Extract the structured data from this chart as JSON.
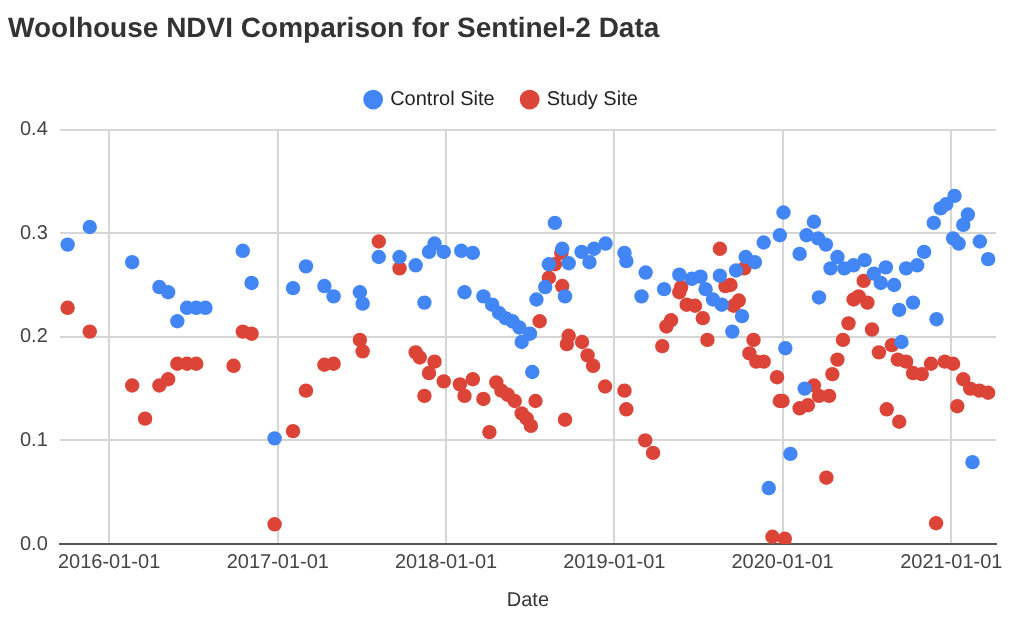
{
  "chart_data": {
    "type": "scatter",
    "title": "Woolhouse NDVI Comparison for Sentinel-2 Data",
    "xlabel": "Date",
    "xlim": [
      "2015-09-16",
      "2021-04-08"
    ],
    "xticks": [
      "2016-01-01",
      "2017-01-01",
      "2018-01-01",
      "2019-01-01",
      "2020-01-01",
      "2021-01-01"
    ],
    "ylim": [
      0,
      0.4
    ],
    "yticks": [
      {
        "value": 0,
        "label": "0.0"
      },
      0.1,
      0.2,
      0.3,
      0.4
    ],
    "grid": true,
    "legend": "top",
    "marker": "circle",
    "series": [
      {
        "name": "Control Site",
        "color": "#4285f4",
        "x": [
          "2015-10-03",
          "2015-11-20",
          "2016-02-20",
          "2016-04-19",
          "2016-05-08",
          "2016-05-28",
          "2016-06-18",
          "2016-07-08",
          "2016-07-28",
          "2016-10-17",
          "2016-11-05",
          "2016-12-25",
          "2017-02-03",
          "2017-03-03",
          "2017-04-12",
          "2017-05-02",
          "2017-06-28",
          "2017-07-04",
          "2017-08-08",
          "2017-09-22",
          "2017-10-27",
          "2017-11-15",
          "2017-11-25",
          "2017-12-07",
          "2017-12-27",
          "2018-02-03",
          "2018-02-10",
          "2018-02-28",
          "2018-03-23",
          "2018-04-11",
          "2018-04-26",
          "2018-05-10",
          "2018-05-25",
          "2018-06-09",
          "2018-06-14",
          "2018-07-02",
          "2018-07-07",
          "2018-07-16",
          "2018-08-04",
          "2018-08-12",
          "2018-08-25",
          "2018-09-10",
          "2018-09-16",
          "2018-09-24",
          "2018-10-22",
          "2018-11-08",
          "2018-11-18",
          "2018-12-13",
          "2019-01-23",
          "2019-01-27",
          "2019-03-01",
          "2019-03-10",
          "2019-04-19",
          "2019-05-22",
          "2019-06-18",
          "2019-07-07",
          "2019-07-18",
          "2019-08-03",
          "2019-08-18",
          "2019-08-22",
          "2019-09-14",
          "2019-09-22",
          "2019-10-05",
          "2019-10-13",
          "2019-11-02",
          "2019-11-21",
          "2019-12-02",
          "2019-12-26",
          "2020-01-03",
          "2020-01-07",
          "2020-01-18",
          "2020-02-07",
          "2020-02-18",
          "2020-02-22",
          "2020-03-09",
          "2020-03-18",
          "2020-03-20",
          "2020-04-04",
          "2020-04-14",
          "2020-04-29",
          "2020-05-14",
          "2020-06-03",
          "2020-06-27",
          "2020-07-17",
          "2020-08-01",
          "2020-08-12",
          "2020-08-30",
          "2020-09-10",
          "2020-09-15",
          "2020-09-25",
          "2020-10-10",
          "2020-10-19",
          "2020-11-03",
          "2020-11-24",
          "2020-11-30",
          "2020-12-09",
          "2020-12-21",
          "2021-01-05",
          "2021-01-08",
          "2021-01-17",
          "2021-01-27",
          "2021-02-06",
          "2021-02-16",
          "2021-03-04",
          "2021-03-22"
        ],
        "values": [
          0.289,
          0.306,
          0.272,
          0.248,
          0.243,
          0.215,
          0.228,
          0.228,
          0.228,
          0.283,
          0.252,
          0.102,
          0.247,
          0.268,
          0.249,
          0.239,
          0.243,
          0.232,
          0.277,
          0.277,
          0.269,
          0.233,
          0.282,
          0.29,
          0.282,
          0.283,
          0.243,
          0.281,
          0.239,
          0.231,
          0.223,
          0.218,
          0.215,
          0.209,
          0.195,
          0.203,
          0.166,
          0.236,
          0.248,
          0.27,
          0.31,
          0.285,
          0.239,
          0.271,
          0.282,
          0.272,
          0.285,
          0.29,
          0.281,
          0.273,
          0.239,
          0.262,
          0.246,
          0.26,
          0.256,
          0.258,
          0.246,
          0.236,
          0.259,
          0.231,
          0.205,
          0.264,
          0.22,
          0.277,
          0.272,
          0.291,
          0.054,
          0.298,
          0.32,
          0.189,
          0.087,
          0.28,
          0.15,
          0.298,
          0.311,
          0.295,
          0.238,
          0.289,
          0.266,
          0.277,
          0.266,
          0.269,
          0.274,
          0.261,
          0.252,
          0.267,
          0.25,
          0.226,
          0.195,
          0.266,
          0.233,
          0.269,
          0.282,
          0.31,
          0.217,
          0.324,
          0.328,
          0.295,
          0.336,
          0.29,
          0.308,
          0.318,
          0.079,
          0.292,
          0.275
        ]
      },
      {
        "name": "Study Site",
        "color": "#db4437",
        "x": [
          "2015-10-03",
          "2015-11-20",
          "2016-02-20",
          "2016-03-19",
          "2016-04-19",
          "2016-05-08",
          "2016-05-28",
          "2016-06-18",
          "2016-07-08",
          "2016-09-27",
          "2016-10-17",
          "2016-11-05",
          "2016-12-25",
          "2017-02-03",
          "2017-03-03",
          "2017-04-12",
          "2017-05-02",
          "2017-06-28",
          "2017-07-04",
          "2017-08-08",
          "2017-09-22",
          "2017-10-27",
          "2017-11-05",
          "2017-11-15",
          "2017-11-25",
          "2017-12-07",
          "2017-12-27",
          "2018-01-31",
          "2018-02-10",
          "2018-02-28",
          "2018-03-23",
          "2018-04-05",
          "2018-04-20",
          "2018-05-01",
          "2018-05-15",
          "2018-05-30",
          "2018-06-14",
          "2018-06-25",
          "2018-07-04",
          "2018-07-14",
          "2018-07-23",
          "2018-08-12",
          "2018-08-25",
          "2018-09-08",
          "2018-09-10",
          "2018-09-16",
          "2018-09-20",
          "2018-09-24",
          "2018-10-23",
          "2018-11-04",
          "2018-11-16",
          "2018-12-12",
          "2019-01-23",
          "2019-01-27",
          "2019-03-09",
          "2019-03-26",
          "2019-04-15",
          "2019-04-24",
          "2019-05-04",
          "2019-05-22",
          "2019-05-26",
          "2019-06-07",
          "2019-06-25",
          "2019-07-12",
          "2019-07-22",
          "2019-08-18",
          "2019-08-30",
          "2019-09-10",
          "2019-09-17",
          "2019-09-28",
          "2019-10-10",
          "2019-10-21",
          "2019-10-30",
          "2019-11-05",
          "2019-11-21",
          "2019-12-10",
          "2019-12-20",
          "2019-12-26",
          "2020-01-01",
          "2020-01-06",
          "2020-02-07",
          "2020-02-25",
          "2020-03-09",
          "2020-03-20",
          "2020-04-05",
          "2020-04-11",
          "2020-04-18",
          "2020-04-29",
          "2020-05-11",
          "2020-05-23",
          "2020-06-03",
          "2020-06-14",
          "2020-06-25",
          "2020-07-03",
          "2020-07-13",
          "2020-07-28",
          "2020-08-14",
          "2020-08-25",
          "2020-09-07",
          "2020-09-10",
          "2020-09-25",
          "2020-10-10",
          "2020-10-29",
          "2020-11-18",
          "2020-11-29",
          "2020-12-18",
          "2021-01-05",
          "2021-01-14",
          "2021-01-27",
          "2021-02-11",
          "2021-03-03",
          "2021-03-22"
        ],
        "values": [
          0.228,
          0.205,
          0.153,
          0.121,
          0.153,
          0.159,
          0.174,
          0.174,
          0.174,
          0.172,
          0.205,
          0.203,
          0.019,
          0.109,
          0.148,
          0.173,
          0.174,
          0.197,
          0.186,
          0.292,
          0.266,
          0.185,
          0.18,
          0.143,
          0.165,
          0.176,
          0.157,
          0.154,
          0.143,
          0.159,
          0.14,
          0.108,
          0.156,
          0.148,
          0.144,
          0.138,
          0.126,
          0.121,
          0.114,
          0.138,
          0.215,
          0.257,
          0.27,
          0.281,
          0.249,
          0.12,
          0.193,
          0.201,
          0.195,
          0.182,
          0.172,
          0.152,
          0.148,
          0.13,
          0.1,
          0.088,
          0.191,
          0.21,
          0.216,
          0.243,
          0.248,
          0.231,
          0.23,
          0.218,
          0.197,
          0.285,
          0.249,
          0.25,
          0.23,
          0.235,
          0.266,
          0.184,
          0.197,
          0.176,
          0.176,
          0.007,
          0.161,
          0.138,
          0.138,
          0.005,
          0.131,
          0.134,
          0.153,
          0.143,
          0.064,
          0.143,
          0.164,
          0.178,
          0.197,
          0.213,
          0.236,
          0.239,
          0.254,
          0.233,
          0.207,
          0.185,
          0.13,
          0.192,
          0.178,
          0.118,
          0.176,
          0.165,
          0.164,
          0.174,
          0.02,
          0.176,
          0.174,
          0.133,
          0.159,
          0.15,
          0.148,
          0.146
        ]
      }
    ]
  }
}
